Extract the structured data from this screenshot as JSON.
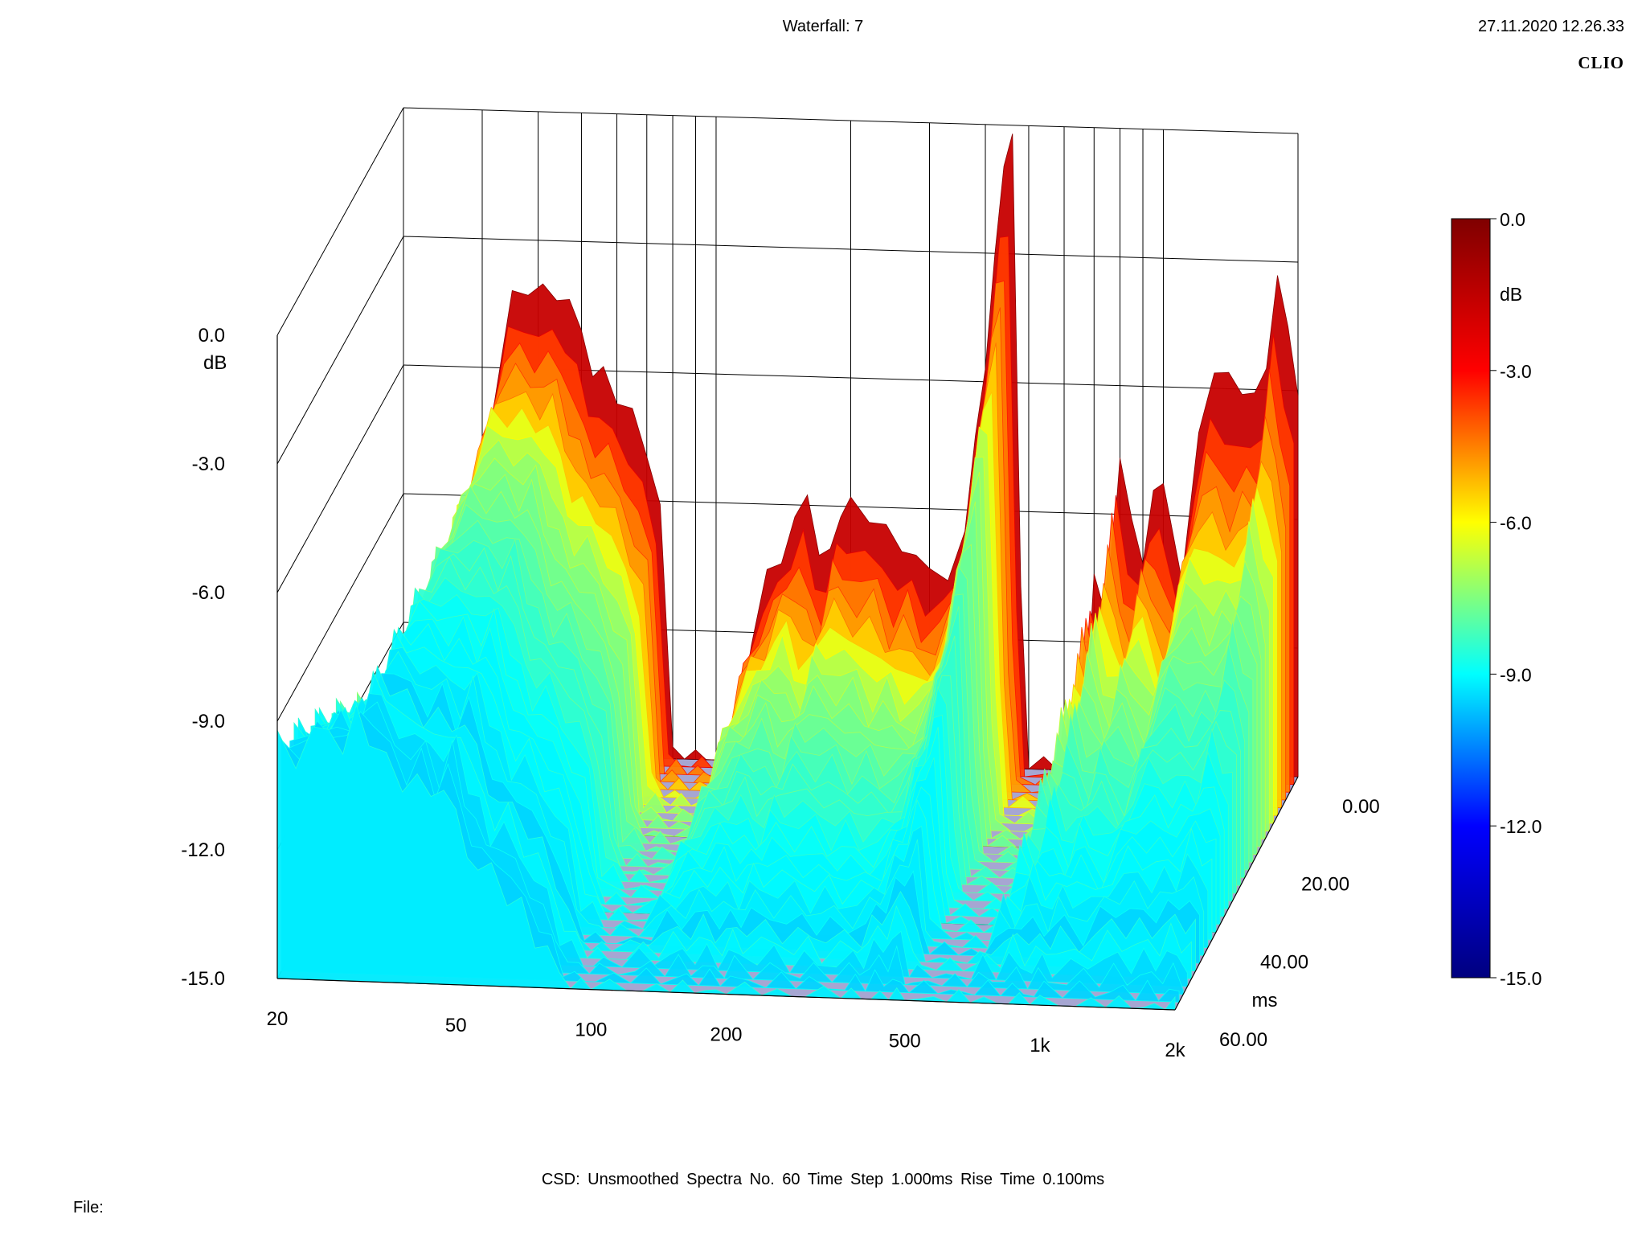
{
  "header": {
    "title": "Waterfall: 7",
    "datetime": "27.11.2020 12.26.33",
    "brand": "CLIO"
  },
  "footer": {
    "info": "CSD:   Unsmoothed   Spectra No. 60   Time Step 1.000ms   Rise Time 0.100ms",
    "file_label": "File:"
  },
  "chart_data": {
    "type": "area",
    "subtype": "waterfall-3d",
    "title": "Waterfall: 7",
    "x_axis": {
      "label": "",
      "scale": "log",
      "range": [
        20,
        2000
      ],
      "ticks": [
        20,
        50,
        100,
        200,
        500,
        1000,
        2000
      ],
      "tick_labels": [
        "20",
        "50",
        "100",
        "200",
        "500",
        "1k",
        "2k"
      ]
    },
    "y_axis": {
      "label": "dB",
      "range": [
        -15.0,
        0.0
      ],
      "ticks": [
        0.0,
        -3.0,
        -6.0,
        -9.0,
        -12.0,
        -15.0
      ],
      "tick_labels": [
        "0.0",
        "-3.0",
        "-6.0",
        "-9.0",
        "-12.0",
        "-15.0"
      ]
    },
    "z_axis": {
      "label": "ms",
      "range": [
        0,
        60
      ],
      "ticks": [
        0,
        20,
        40,
        60
      ],
      "tick_labels": [
        "0.00",
        "20.00",
        "40.00",
        "60.00"
      ]
    },
    "colorbar": {
      "label": "dB",
      "range": [
        -15.0,
        0.0
      ],
      "ticks": [
        0.0,
        -3.0,
        -6.0,
        -9.0,
        -12.0,
        -15.0
      ],
      "tick_labels": [
        "0.0",
        "-3.0",
        "-6.0",
        "-9.0",
        "-12.0",
        "-15.0"
      ],
      "colormap": [
        "#00007f",
        "#0000ff",
        "#00ffff",
        "#ffff00",
        "#ff0000",
        "#7f0000"
      ]
    },
    "grid": true,
    "series": [
      {
        "freq": [
          20,
          22,
          24,
          26,
          28,
          30,
          32,
          35,
          38,
          41,
          44,
          47,
          50,
          53,
          56,
          60,
          65,
          70,
          75,
          80,
          85,
          90,
          95,
          100,
          110,
          120,
          130,
          140,
          150,
          160,
          170,
          180,
          190,
          200,
          220,
          240,
          260,
          280,
          300,
          330,
          360,
          380,
          400,
          420,
          440,
          460,
          480,
          500,
          540,
          580,
          620,
          660,
          700,
          750,
          800,
          850,
          900,
          950,
          1000,
          1100,
          1200,
          1300,
          1400,
          1500,
          1600,
          1700,
          1800,
          1900,
          2000
        ],
        "front_db": [
          -9.5,
          -9.8,
          -9.3,
          -9.1,
          -9.6,
          -8.8,
          -9.2,
          -9.9,
          -10.4,
          -10.1,
          -10.8,
          -10.2,
          -11.2,
          -11.8,
          -12.4,
          -12.2,
          -12.9,
          -13.2,
          -13.8,
          -14.2,
          -14.6,
          -15,
          -15,
          -15,
          -15,
          -15,
          -15,
          -15,
          -15,
          -15,
          -15,
          -15,
          -15,
          -15,
          -15,
          -15,
          -15,
          -15,
          -15,
          -15,
          -15,
          -15,
          -15,
          -15,
          -15,
          -15,
          -15,
          -15,
          -15,
          -15,
          -15,
          -15,
          -15,
          -15,
          -15,
          -15,
          -15,
          -15,
          -15,
          -15,
          -15,
          -15,
          -15,
          -15,
          -15,
          -15,
          -15,
          -15,
          -15
        ],
        "back_db": [
          -15,
          -15,
          -15,
          -15,
          -14,
          -8.2,
          -6.7,
          -4.4,
          -4.0,
          -4.3,
          -4.2,
          -4.4,
          -5.2,
          -5.9,
          -6.2,
          -6.5,
          -7.0,
          -8.0,
          -8.9,
          -15,
          -15,
          -15,
          -15,
          -15,
          -15,
          -12.0,
          -10.8,
          -10.2,
          -9.3,
          -8.9,
          -9.9,
          -10.3,
          -9.0,
          -8.9,
          -9.4,
          -9.2,
          -10.3,
          -9.8,
          -10.6,
          -10.6,
          -9.4,
          -7.5,
          -5.4,
          -3.3,
          -0.8,
          -0.2,
          -10.9,
          -15,
          -15,
          -15,
          -15,
          -15,
          -10.2,
          -11.8,
          -7.4,
          -9.3,
          -10.1,
          -8.3,
          -8.5,
          -10.2,
          -7.3,
          -5.5,
          -5.6,
          -6.3,
          -5.8,
          -5.8,
          -3.1,
          -4.6,
          -6.2
        ]
      }
    ]
  }
}
